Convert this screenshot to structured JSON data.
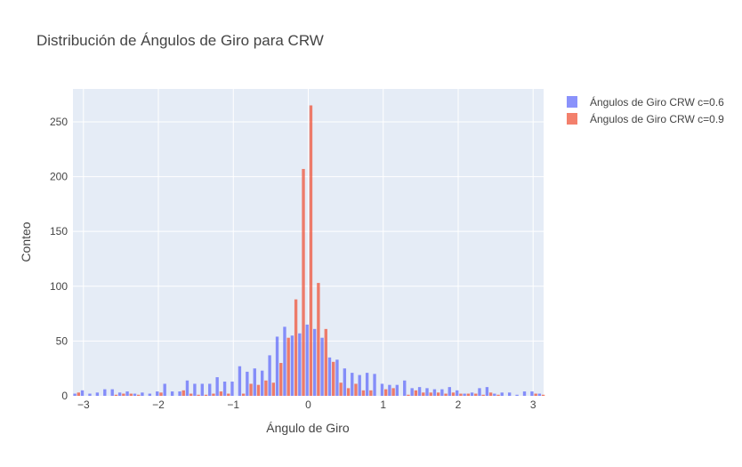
{
  "chart_data": {
    "type": "bar",
    "title": "Distribución de Ángulos de Giro para CRW",
    "xlabel": "Ángulo de Giro",
    "ylabel": "Conteo",
    "xlim": [
      -3.14,
      3.14
    ],
    "ylim": [
      0,
      280
    ],
    "x_ticks": [
      -3,
      -2,
      -1,
      0,
      1,
      2,
      3
    ],
    "x_tick_labels": [
      "−3",
      "−2",
      "−1",
      "0",
      "1",
      "2",
      "3"
    ],
    "y_ticks": [
      0,
      50,
      100,
      150,
      200,
      250
    ],
    "y_tick_labels": [
      "0",
      "50",
      "100",
      "150",
      "200",
      "250"
    ],
    "grid": true,
    "legend_position": "top-right, outside plot",
    "bin_width": 0.1,
    "bins_start": -3.14,
    "series": [
      {
        "name": "Ángulos de Giro CRW c=0.6",
        "color": "#636efa",
        "values": [
          2,
          5,
          2,
          3,
          6,
          6,
          3,
          4,
          2,
          3,
          2,
          4,
          11,
          4,
          4,
          14,
          11,
          11,
          11,
          17,
          13,
          13,
          27,
          22,
          25,
          23,
          37,
          54,
          63,
          55,
          57,
          65,
          61,
          53,
          35,
          33,
          25,
          21,
          19,
          21,
          20,
          11,
          10,
          10,
          14,
          7,
          8,
          7,
          6,
          6,
          8,
          5,
          2,
          3,
          7,
          8,
          2,
          3,
          3,
          1,
          4,
          4,
          2
        ]
      },
      {
        "name": "Ángulos de Giro CRW c=0.9",
        "color": "#ef553b",
        "values": [
          3,
          0,
          0,
          0,
          0,
          1,
          2,
          2,
          1,
          0,
          0,
          3,
          0,
          0,
          5,
          2,
          1,
          1,
          2,
          4,
          2,
          0,
          2,
          11,
          10,
          14,
          12,
          30,
          53,
          88,
          207,
          265,
          103,
          61,
          31,
          12,
          7,
          11,
          5,
          5,
          0,
          6,
          7,
          0,
          1,
          5,
          3,
          3,
          3,
          2,
          3,
          2,
          2,
          2,
          1,
          3,
          1,
          0,
          0,
          0,
          0,
          2,
          1
        ]
      }
    ]
  }
}
